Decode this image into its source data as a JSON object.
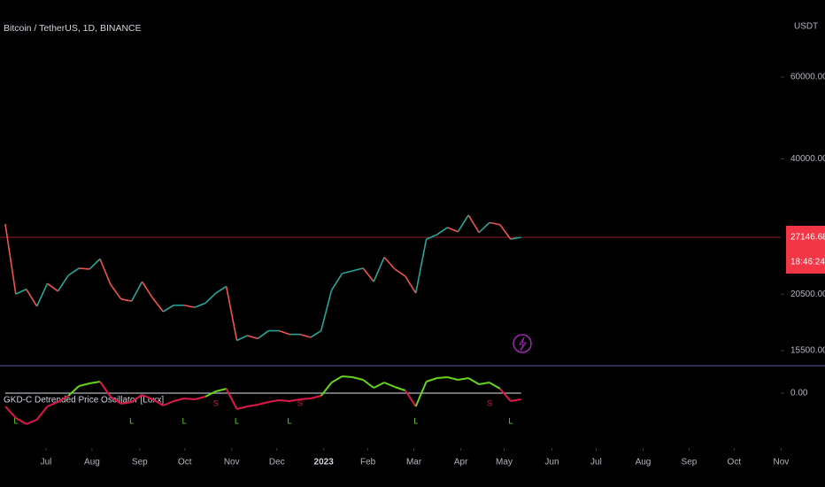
{
  "chart_data": [
    {
      "type": "line",
      "title": "Bitcoin / TetherUS, 1D, BINANCE",
      "currency": "USDT",
      "log_scale": true,
      "x": [
        0,
        1,
        2,
        3,
        4,
        5,
        6,
        7,
        8,
        9,
        10,
        11,
        12,
        13,
        14,
        15,
        16,
        17,
        18,
        19,
        20,
        21,
        22,
        23,
        24,
        25,
        26,
        27,
        28,
        29,
        30,
        31,
        32,
        33,
        34,
        35,
        36,
        37,
        38,
        39,
        40,
        41,
        42,
        43,
        44,
        45,
        46,
        47,
        48,
        49
      ],
      "values": [
        29000,
        20500,
        21000,
        19300,
        21600,
        20800,
        22500,
        23300,
        23200,
        24400,
        21500,
        20000,
        19800,
        21800,
        20100,
        18800,
        19400,
        19400,
        19200,
        19600,
        20600,
        21300,
        16300,
        16700,
        16450,
        17100,
        17100,
        16800,
        16800,
        16550,
        17100,
        20900,
        22700,
        23000,
        23300,
        21800,
        24600,
        23200,
        22400,
        20600,
        26900,
        27500,
        28500,
        27900,
        30300,
        27800,
        29200,
        28900,
        26900,
        27146.68
      ],
      "up_color": "#26a69a",
      "down_color": "#ef5350",
      "last_price": 27146.68,
      "countdown": "18:46:24",
      "last_price_color": "#f23645",
      "xlim": [
        -0.5,
        73.5
      ],
      "xticks": [
        {
          "value": 3.87,
          "label": "Jul"
        },
        {
          "value": 8.24,
          "label": "Aug"
        },
        {
          "value": 12.77,
          "label": "Sep"
        },
        {
          "value": 17.06,
          "label": "Oct"
        },
        {
          "value": 21.51,
          "label": "Nov"
        },
        {
          "value": 25.8,
          "label": "Dec"
        },
        {
          "value": 30.25,
          "label": "2023"
        },
        {
          "value": 34.45,
          "label": "Feb"
        },
        {
          "value": 38.82,
          "label": "Mar"
        },
        {
          "value": 43.28,
          "label": "Apr"
        },
        {
          "value": 47.39,
          "label": "May"
        },
        {
          "value": 51.93,
          "label": "Jun"
        },
        {
          "value": 56.13,
          "label": "Jul"
        },
        {
          "value": 60.59,
          "label": "Aug"
        },
        {
          "value": 64.96,
          "label": "Sep"
        },
        {
          "value": 69.24,
          "label": "Oct"
        },
        {
          "value": 73.7,
          "label": "Nov"
        }
      ],
      "ylim": [
        14450,
        87800
      ],
      "yticks": [
        {
          "value": 60000,
          "label": "60000.00"
        },
        {
          "value": 40000,
          "label": "40000.00"
        },
        {
          "value": 20500,
          "label": "20500.00"
        },
        {
          "value": 15500,
          "label": "15500.00"
        }
      ]
    },
    {
      "type": "line",
      "title": "GKD-C Detrended Price Oscillator [Loxx]",
      "x": [
        0,
        1,
        2,
        3,
        4,
        5,
        6,
        7,
        8,
        9,
        10,
        11,
        12,
        13,
        14,
        15,
        16,
        17,
        18,
        19,
        20,
        21,
        22,
        23,
        24,
        25,
        26,
        27,
        28,
        29,
        30,
        31,
        32,
        33,
        34,
        35,
        36,
        37,
        38,
        39,
        40,
        41,
        42,
        43,
        44,
        45,
        46,
        47,
        48,
        49
      ],
      "values": [
        -1500,
        -2800,
        -3500,
        -3000,
        -1500,
        -1000,
        -300,
        800,
        1100,
        1300,
        -400,
        -1200,
        -1000,
        -200,
        -700,
        -1400,
        -900,
        -600,
        -700,
        -400,
        200,
        500,
        -1800,
        -1500,
        -1300,
        -1000,
        -800,
        -900,
        -700,
        -600,
        -300,
        1200,
        1900,
        1800,
        1500,
        600,
        1200,
        700,
        300,
        -1500,
        1300,
        1700,
        1800,
        1500,
        1700,
        1000,
        1200,
        500,
        -900,
        -700
      ],
      "up_color": "#66d61c",
      "down_color": "#e0174a",
      "zero_color": "#b2b5be",
      "signals": [
        {
          "x": 1,
          "label": "L"
        },
        {
          "x": 12,
          "label": "L"
        },
        {
          "x": 17,
          "label": "L"
        },
        {
          "x": 20,
          "label": "S"
        },
        {
          "x": 22,
          "label": "L"
        },
        {
          "x": 27,
          "label": "L"
        },
        {
          "x": 28,
          "label": "S"
        },
        {
          "x": 39,
          "label": "L"
        },
        {
          "x": 46,
          "label": "S"
        },
        {
          "x": 48,
          "label": "L"
        }
      ],
      "ylim": [
        -4600,
        2900
      ],
      "yticks": [
        {
          "value": 0,
          "label": "0.00"
        }
      ]
    }
  ]
}
